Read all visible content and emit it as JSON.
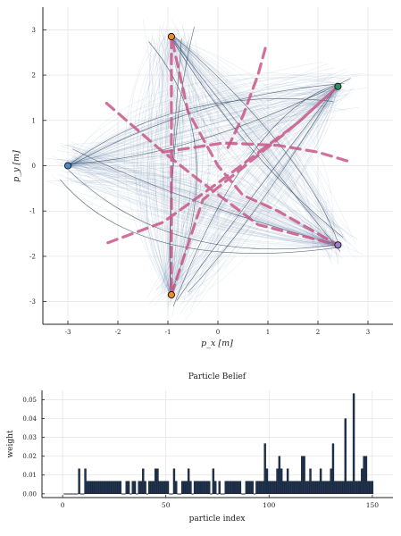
{
  "style": {
    "grid_color": "#e3e3e3",
    "axis_color": "#222222",
    "particle_color": "#4a6f9e",
    "particle_dark": "#2a3b52",
    "mean_path_color": "#c8578a",
    "bar_fill": "#1d3557",
    "bar_edge": "#0b0f14",
    "landmark_colors": [
      "#4f86c6",
      "#f08a24",
      "#2a8f5e",
      "#9b7fc8",
      "#f08a24"
    ]
  },
  "chart_data": [
    {
      "type": "line",
      "title": "",
      "xlabel": "p_x [m]",
      "ylabel": "p_y [m]",
      "xlim": [
        -3.5,
        3.5
      ],
      "ylim": [
        -3.5,
        3.5
      ],
      "xticks": [
        "-3",
        "-2",
        "-1",
        "0",
        "1",
        "2",
        "3"
      ],
      "yticks": [
        "-3",
        "-2",
        "-1",
        "0",
        "1",
        "2",
        "3"
      ],
      "grid": true,
      "legend": "none",
      "star_vertices": [
        [
          -3.0,
          0.0
        ],
        [
          2.4,
          1.75
        ],
        [
          -0.93,
          -2.85
        ],
        [
          -0.93,
          2.85
        ],
        [
          2.4,
          -1.75
        ],
        [
          -3.0,
          0.0
        ]
      ],
      "landmarks": [
        {
          "x": -3.0,
          "y": 0.0
        },
        {
          "x": -0.93,
          "y": 2.85
        },
        {
          "x": 2.4,
          "y": 1.75
        },
        {
          "x": 2.4,
          "y": -1.75
        },
        {
          "x": -0.93,
          "y": -2.85
        }
      ],
      "mean_path": [
        [
          -2.2,
          -1.7
        ],
        [
          -1.1,
          -1.25
        ],
        [
          0.1,
          -0.3
        ],
        [
          1.6,
          0.95
        ],
        [
          2.4,
          1.75
        ],
        [
          1.6,
          0.95
        ],
        [
          0.6,
          0.05
        ],
        [
          -0.3,
          -0.75
        ],
        [
          -0.93,
          -2.85
        ],
        [
          -0.93,
          -1.2
        ],
        [
          -0.93,
          0.6
        ],
        [
          -0.93,
          2.85
        ],
        [
          -0.6,
          1.2
        ],
        [
          0.0,
          0.0
        ],
        [
          0.5,
          -0.65
        ],
        [
          1.2,
          -1.0
        ],
        [
          2.4,
          -1.75
        ],
        [
          0.8,
          -1.3
        ],
        [
          -0.4,
          -0.3
        ],
        [
          -1.2,
          0.4
        ],
        [
          -2.3,
          1.45
        ]
      ],
      "mean_path_2": [
        [
          -1.1,
          0.3
        ],
        [
          0.1,
          0.5
        ],
        [
          1.2,
          0.45
        ],
        [
          2.0,
          0.3
        ],
        [
          2.6,
          0.1
        ]
      ],
      "mean_path_3": [
        [
          0.2,
          0.4
        ],
        [
          0.5,
          1.1
        ],
        [
          0.8,
          2.0
        ],
        [
          0.95,
          2.6
        ]
      ]
    },
    {
      "type": "bar",
      "title": "Particle Belief",
      "xlabel": "particle index",
      "ylabel": "weight",
      "xlim": [
        -10,
        160
      ],
      "ylim": [
        -0.002,
        0.055
      ],
      "xticks": [
        "0",
        "50",
        "100",
        "150"
      ],
      "yticks": [
        "0.00",
        "0.01",
        "0.02",
        "0.03",
        "0.04",
        "0.05"
      ],
      "grid": true,
      "legend": "none",
      "values": [
        0,
        0,
        0,
        0,
        0,
        0,
        0,
        0.0133,
        0,
        0,
        0.0133,
        0.0067,
        0.0067,
        0.0067,
        0.0067,
        0.0067,
        0.0067,
        0.0067,
        0.0067,
        0.0067,
        0.0067,
        0.0067,
        0.0067,
        0.0067,
        0.0067,
        0.0067,
        0.0067,
        0.0067,
        0,
        0,
        0.0067,
        0.0067,
        0,
        0.0067,
        0.0067,
        0,
        0.0067,
        0.0067,
        0.0133,
        0.0067,
        0,
        0.0067,
        0.0067,
        0.0067,
        0.0133,
        0.0133,
        0.0067,
        0.0067,
        0.0067,
        0.0067,
        0.0067,
        0,
        0,
        0.0133,
        0.0067,
        0,
        0,
        0.0067,
        0.0067,
        0.0067,
        0.0133,
        0.0067,
        0,
        0.0067,
        0.0067,
        0.0067,
        0.0067,
        0.0067,
        0.0067,
        0.0067,
        0.0067,
        0,
        0.0133,
        0.0067,
        0,
        0.0067,
        0,
        0,
        0.0067,
        0.0067,
        0.0067,
        0.0067,
        0.0067,
        0.0067,
        0.0067,
        0.0067,
        0,
        0,
        0.0067,
        0.0067,
        0.0067,
        0.0067,
        0,
        0.0067,
        0.0067,
        0.0067,
        0.0067,
        0.0267,
        0.0133,
        0.0067,
        0.0067,
        0.0067,
        0.0067,
        0.0133,
        0.02,
        0.0133,
        0.0067,
        0.0067,
        0.0133,
        0.0067,
        0.0067,
        0.0067,
        0.0067,
        0.0067,
        0.0067,
        0.02,
        0.02,
        0.0067,
        0.0067,
        0.0133,
        0.0067,
        0.0067,
        0.0067,
        0.0067,
        0.0133,
        0.0067,
        0.0067,
        0.0067,
        0.0067,
        0.0133,
        0.0267,
        0.0067,
        0.0067,
        0.0067,
        0.0067,
        0.0067,
        0.04,
        0.0067,
        0.0067,
        0.0067,
        0.0533,
        0.0067,
        0.0067,
        0.0067,
        0.0133,
        0.02,
        0.02,
        0.0067,
        0.0067,
        0.0067
      ]
    }
  ]
}
